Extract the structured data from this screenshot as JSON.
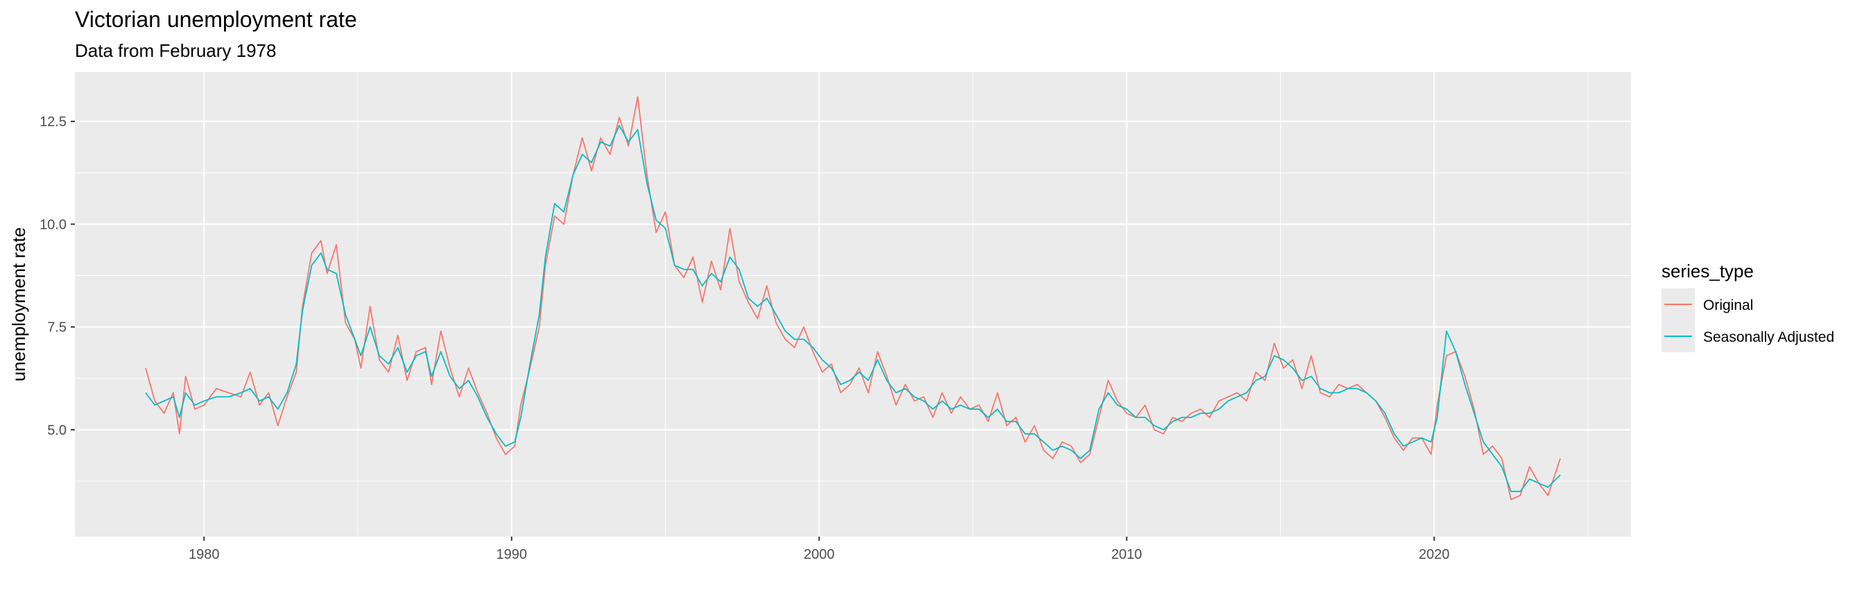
{
  "chart_data": {
    "type": "line",
    "title": "Victorian unemployment rate",
    "subtitle": "Data from February 1978",
    "xlabel": "",
    "ylabel": "unemployment rate",
    "xlim": [
      1975.8,
      2026.4
    ],
    "ylim": [
      2.4,
      13.7
    ],
    "x_ticks": [
      1980,
      1990,
      2000,
      2010,
      2020
    ],
    "y_ticks": [
      5.0,
      7.5,
      10.0,
      12.5
    ],
    "x_tick_labels": [
      "1980",
      "1990",
      "2000",
      "2010",
      "2020"
    ],
    "y_tick_labels": [
      "5.0",
      "7.5",
      "10.0",
      "12.5"
    ],
    "grid": true,
    "legend": {
      "title": "series_type",
      "position": "right"
    },
    "series": [
      {
        "name": "Original",
        "color": "#F8766D",
        "points": [
          [
            1978.1,
            6.5
          ],
          [
            1978.4,
            5.7
          ],
          [
            1978.7,
            5.4
          ],
          [
            1979.0,
            5.9
          ],
          [
            1979.2,
            4.9
          ],
          [
            1979.4,
            6.3
          ],
          [
            1979.7,
            5.5
          ],
          [
            1980.0,
            5.6
          ],
          [
            1980.4,
            6.0
          ],
          [
            1980.8,
            5.9
          ],
          [
            1981.2,
            5.8
          ],
          [
            1981.5,
            6.4
          ],
          [
            1981.8,
            5.6
          ],
          [
            1982.1,
            5.9
          ],
          [
            1982.4,
            5.1
          ],
          [
            1982.7,
            5.8
          ],
          [
            1983.0,
            6.4
          ],
          [
            1983.2,
            8.0
          ],
          [
            1983.5,
            9.3
          ],
          [
            1983.8,
            9.6
          ],
          [
            1984.0,
            8.8
          ],
          [
            1984.3,
            9.5
          ],
          [
            1984.6,
            7.6
          ],
          [
            1984.9,
            7.2
          ],
          [
            1985.1,
            6.5
          ],
          [
            1985.4,
            8.0
          ],
          [
            1985.7,
            6.7
          ],
          [
            1986.0,
            6.4
          ],
          [
            1986.3,
            7.3
          ],
          [
            1986.6,
            6.2
          ],
          [
            1986.9,
            6.9
          ],
          [
            1987.2,
            7.0
          ],
          [
            1987.4,
            6.1
          ],
          [
            1987.7,
            7.4
          ],
          [
            1988.0,
            6.5
          ],
          [
            1988.3,
            5.8
          ],
          [
            1988.6,
            6.5
          ],
          [
            1988.9,
            5.9
          ],
          [
            1989.2,
            5.4
          ],
          [
            1989.5,
            4.8
          ],
          [
            1989.8,
            4.4
          ],
          [
            1990.1,
            4.6
          ],
          [
            1990.3,
            5.6
          ],
          [
            1990.6,
            6.5
          ],
          [
            1990.9,
            7.5
          ],
          [
            1991.1,
            9.0
          ],
          [
            1991.4,
            10.2
          ],
          [
            1991.7,
            10.0
          ],
          [
            1992.0,
            11.2
          ],
          [
            1992.3,
            12.1
          ],
          [
            1992.6,
            11.3
          ],
          [
            1992.9,
            12.1
          ],
          [
            1993.2,
            11.7
          ],
          [
            1993.5,
            12.6
          ],
          [
            1993.8,
            11.9
          ],
          [
            1994.1,
            13.1
          ],
          [
            1994.4,
            11.2
          ],
          [
            1994.7,
            9.8
          ],
          [
            1995.0,
            10.3
          ],
          [
            1995.3,
            9.0
          ],
          [
            1995.6,
            8.7
          ],
          [
            1995.9,
            9.2
          ],
          [
            1996.2,
            8.1
          ],
          [
            1996.5,
            9.1
          ],
          [
            1996.8,
            8.4
          ],
          [
            1997.1,
            9.9
          ],
          [
            1997.4,
            8.6
          ],
          [
            1997.7,
            8.1
          ],
          [
            1998.0,
            7.7
          ],
          [
            1998.3,
            8.5
          ],
          [
            1998.6,
            7.6
          ],
          [
            1998.9,
            7.2
          ],
          [
            1999.2,
            7.0
          ],
          [
            1999.5,
            7.5
          ],
          [
            1999.8,
            6.9
          ],
          [
            2000.1,
            6.4
          ],
          [
            2000.4,
            6.6
          ],
          [
            2000.7,
            5.9
          ],
          [
            2001.0,
            6.1
          ],
          [
            2001.3,
            6.5
          ],
          [
            2001.6,
            5.9
          ],
          [
            2001.9,
            6.9
          ],
          [
            2002.2,
            6.3
          ],
          [
            2002.5,
            5.6
          ],
          [
            2002.8,
            6.1
          ],
          [
            2003.1,
            5.7
          ],
          [
            2003.4,
            5.8
          ],
          [
            2003.7,
            5.3
          ],
          [
            2004.0,
            5.9
          ],
          [
            2004.3,
            5.4
          ],
          [
            2004.6,
            5.8
          ],
          [
            2004.9,
            5.5
          ],
          [
            2005.2,
            5.6
          ],
          [
            2005.5,
            5.2
          ],
          [
            2005.8,
            5.9
          ],
          [
            2006.1,
            5.1
          ],
          [
            2006.4,
            5.3
          ],
          [
            2006.7,
            4.7
          ],
          [
            2007.0,
            5.1
          ],
          [
            2007.3,
            4.5
          ],
          [
            2007.6,
            4.3
          ],
          [
            2007.9,
            4.7
          ],
          [
            2008.2,
            4.6
          ],
          [
            2008.5,
            4.2
          ],
          [
            2008.8,
            4.4
          ],
          [
            2009.1,
            5.3
          ],
          [
            2009.4,
            6.2
          ],
          [
            2009.7,
            5.7
          ],
          [
            2010.0,
            5.4
          ],
          [
            2010.3,
            5.3
          ],
          [
            2010.6,
            5.6
          ],
          [
            2010.9,
            5.0
          ],
          [
            2011.2,
            4.9
          ],
          [
            2011.5,
            5.3
          ],
          [
            2011.8,
            5.2
          ],
          [
            2012.1,
            5.4
          ],
          [
            2012.4,
            5.5
          ],
          [
            2012.7,
            5.3
          ],
          [
            2013.0,
            5.7
          ],
          [
            2013.3,
            5.8
          ],
          [
            2013.6,
            5.9
          ],
          [
            2013.9,
            5.7
          ],
          [
            2014.2,
            6.4
          ],
          [
            2014.5,
            6.2
          ],
          [
            2014.8,
            7.1
          ],
          [
            2015.1,
            6.5
          ],
          [
            2015.4,
            6.7
          ],
          [
            2015.7,
            6.0
          ],
          [
            2016.0,
            6.8
          ],
          [
            2016.3,
            5.9
          ],
          [
            2016.6,
            5.8
          ],
          [
            2016.9,
            6.1
          ],
          [
            2017.2,
            6.0
          ],
          [
            2017.5,
            6.1
          ],
          [
            2017.8,
            5.9
          ],
          [
            2018.1,
            5.7
          ],
          [
            2018.4,
            5.3
          ],
          [
            2018.7,
            4.8
          ],
          [
            2019.0,
            4.5
          ],
          [
            2019.3,
            4.8
          ],
          [
            2019.6,
            4.8
          ],
          [
            2019.9,
            4.4
          ],
          [
            2020.1,
            5.6
          ],
          [
            2020.4,
            6.8
          ],
          [
            2020.7,
            6.9
          ],
          [
            2021.0,
            6.3
          ],
          [
            2021.3,
            5.5
          ],
          [
            2021.6,
            4.4
          ],
          [
            2021.9,
            4.6
          ],
          [
            2022.2,
            4.3
          ],
          [
            2022.5,
            3.3
          ],
          [
            2022.8,
            3.4
          ],
          [
            2023.1,
            4.1
          ],
          [
            2023.4,
            3.7
          ],
          [
            2023.7,
            3.4
          ],
          [
            2024.1,
            4.3
          ]
        ]
      },
      {
        "name": "Seasonally Adjusted",
        "color": "#00BFC4",
        "points": [
          [
            1978.1,
            5.9
          ],
          [
            1978.4,
            5.6
          ],
          [
            1978.7,
            5.7
          ],
          [
            1979.0,
            5.8
          ],
          [
            1979.2,
            5.3
          ],
          [
            1979.4,
            5.9
          ],
          [
            1979.7,
            5.6
          ],
          [
            1980.0,
            5.7
          ],
          [
            1980.4,
            5.8
          ],
          [
            1980.8,
            5.8
          ],
          [
            1981.2,
            5.9
          ],
          [
            1981.5,
            6.0
          ],
          [
            1981.8,
            5.7
          ],
          [
            1982.1,
            5.8
          ],
          [
            1982.4,
            5.5
          ],
          [
            1982.7,
            5.9
          ],
          [
            1983.0,
            6.6
          ],
          [
            1983.2,
            7.9
          ],
          [
            1983.5,
            9.0
          ],
          [
            1983.8,
            9.3
          ],
          [
            1984.0,
            8.9
          ],
          [
            1984.3,
            8.8
          ],
          [
            1984.6,
            7.8
          ],
          [
            1984.9,
            7.2
          ],
          [
            1985.1,
            6.8
          ],
          [
            1985.4,
            7.5
          ],
          [
            1985.7,
            6.8
          ],
          [
            1986.0,
            6.6
          ],
          [
            1986.3,
            7.0
          ],
          [
            1986.6,
            6.4
          ],
          [
            1986.9,
            6.8
          ],
          [
            1987.2,
            6.9
          ],
          [
            1987.4,
            6.3
          ],
          [
            1987.7,
            6.9
          ],
          [
            1988.0,
            6.3
          ],
          [
            1988.3,
            6.0
          ],
          [
            1988.6,
            6.2
          ],
          [
            1988.9,
            5.8
          ],
          [
            1989.2,
            5.3
          ],
          [
            1989.5,
            4.9
          ],
          [
            1989.8,
            4.6
          ],
          [
            1990.1,
            4.7
          ],
          [
            1990.3,
            5.3
          ],
          [
            1990.6,
            6.6
          ],
          [
            1990.9,
            7.8
          ],
          [
            1991.1,
            9.2
          ],
          [
            1991.4,
            10.5
          ],
          [
            1991.7,
            10.3
          ],
          [
            1992.0,
            11.2
          ],
          [
            1992.3,
            11.7
          ],
          [
            1992.6,
            11.5
          ],
          [
            1992.9,
            12.0
          ],
          [
            1993.2,
            11.9
          ],
          [
            1993.5,
            12.4
          ],
          [
            1993.8,
            12.0
          ],
          [
            1994.1,
            12.3
          ],
          [
            1994.4,
            11.0
          ],
          [
            1994.7,
            10.1
          ],
          [
            1995.0,
            9.9
          ],
          [
            1995.3,
            9.0
          ],
          [
            1995.6,
            8.9
          ],
          [
            1995.9,
            8.9
          ],
          [
            1996.2,
            8.5
          ],
          [
            1996.5,
            8.8
          ],
          [
            1996.8,
            8.6
          ],
          [
            1997.1,
            9.2
          ],
          [
            1997.4,
            8.9
          ],
          [
            1997.7,
            8.2
          ],
          [
            1998.0,
            8.0
          ],
          [
            1998.3,
            8.2
          ],
          [
            1998.6,
            7.8
          ],
          [
            1998.9,
            7.4
          ],
          [
            1999.2,
            7.2
          ],
          [
            1999.5,
            7.2
          ],
          [
            1999.8,
            7.0
          ],
          [
            2000.1,
            6.7
          ],
          [
            2000.4,
            6.5
          ],
          [
            2000.7,
            6.1
          ],
          [
            2001.0,
            6.2
          ],
          [
            2001.3,
            6.4
          ],
          [
            2001.6,
            6.2
          ],
          [
            2001.9,
            6.7
          ],
          [
            2002.2,
            6.2
          ],
          [
            2002.5,
            5.9
          ],
          [
            2002.8,
            6.0
          ],
          [
            2003.1,
            5.8
          ],
          [
            2003.4,
            5.7
          ],
          [
            2003.7,
            5.5
          ],
          [
            2004.0,
            5.7
          ],
          [
            2004.3,
            5.5
          ],
          [
            2004.6,
            5.6
          ],
          [
            2004.9,
            5.5
          ],
          [
            2005.2,
            5.5
          ],
          [
            2005.5,
            5.3
          ],
          [
            2005.8,
            5.5
          ],
          [
            2006.1,
            5.2
          ],
          [
            2006.4,
            5.2
          ],
          [
            2006.7,
            4.9
          ],
          [
            2007.0,
            4.9
          ],
          [
            2007.3,
            4.7
          ],
          [
            2007.6,
            4.5
          ],
          [
            2007.9,
            4.6
          ],
          [
            2008.2,
            4.5
          ],
          [
            2008.5,
            4.3
          ],
          [
            2008.8,
            4.5
          ],
          [
            2009.1,
            5.5
          ],
          [
            2009.4,
            5.9
          ],
          [
            2009.7,
            5.6
          ],
          [
            2010.0,
            5.5
          ],
          [
            2010.3,
            5.3
          ],
          [
            2010.6,
            5.3
          ],
          [
            2010.9,
            5.1
          ],
          [
            2011.2,
            5.0
          ],
          [
            2011.5,
            5.2
          ],
          [
            2011.8,
            5.3
          ],
          [
            2012.1,
            5.3
          ],
          [
            2012.4,
            5.4
          ],
          [
            2012.7,
            5.4
          ],
          [
            2013.0,
            5.5
          ],
          [
            2013.3,
            5.7
          ],
          [
            2013.6,
            5.8
          ],
          [
            2013.9,
            5.9
          ],
          [
            2014.2,
            6.2
          ],
          [
            2014.5,
            6.3
          ],
          [
            2014.8,
            6.8
          ],
          [
            2015.1,
            6.7
          ],
          [
            2015.4,
            6.5
          ],
          [
            2015.7,
            6.2
          ],
          [
            2016.0,
            6.3
          ],
          [
            2016.3,
            6.0
          ],
          [
            2016.6,
            5.9
          ],
          [
            2016.9,
            5.9
          ],
          [
            2017.2,
            6.0
          ],
          [
            2017.5,
            6.0
          ],
          [
            2017.8,
            5.9
          ],
          [
            2018.1,
            5.7
          ],
          [
            2018.4,
            5.4
          ],
          [
            2018.7,
            4.9
          ],
          [
            2019.0,
            4.6
          ],
          [
            2019.3,
            4.7
          ],
          [
            2019.6,
            4.8
          ],
          [
            2019.9,
            4.7
          ],
          [
            2020.1,
            5.3
          ],
          [
            2020.4,
            7.4
          ],
          [
            2020.7,
            6.9
          ],
          [
            2021.0,
            6.1
          ],
          [
            2021.3,
            5.4
          ],
          [
            2021.6,
            4.7
          ],
          [
            2021.9,
            4.4
          ],
          [
            2022.2,
            4.1
          ],
          [
            2022.5,
            3.5
          ],
          [
            2022.8,
            3.5
          ],
          [
            2023.1,
            3.8
          ],
          [
            2023.4,
            3.7
          ],
          [
            2023.7,
            3.6
          ],
          [
            2024.1,
            3.9
          ]
        ]
      }
    ]
  }
}
